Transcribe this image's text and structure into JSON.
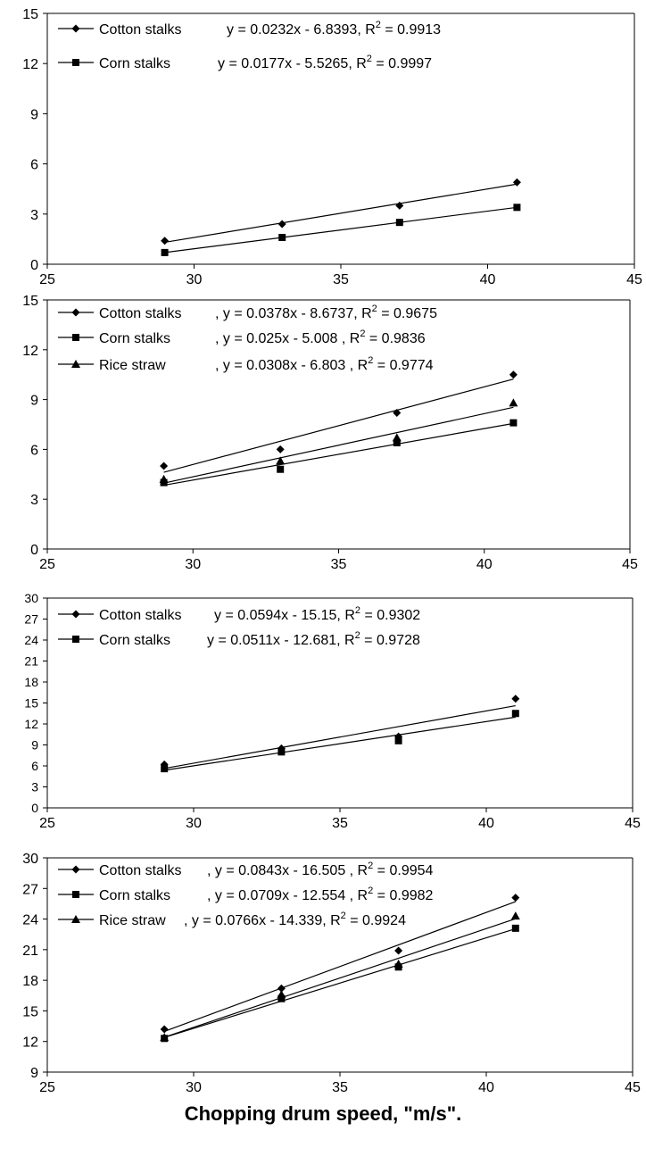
{
  "figure": {
    "xlabel": "Chopping drum speed, \"m/s\"."
  },
  "chart_data": [
    {
      "type": "scatter",
      "xlim": [
        25,
        45
      ],
      "ylim": [
        0,
        15
      ],
      "xticks": [
        25,
        30,
        35,
        40,
        45
      ],
      "yticks": [
        0,
        3,
        6,
        9,
        12,
        15
      ],
      "grid": false,
      "legend": "top-left",
      "series": [
        {
          "name": "Cotton stalks",
          "marker": "diamond",
          "x": [
            29,
            33,
            37,
            41
          ],
          "y": [
            1.4,
            2.4,
            3.5,
            4.9
          ],
          "fit": {
            "slope": 0.0232,
            "intercept": -6.8393
          },
          "eq_text": "y = 0.0232x - 6.8393,  R",
          "r2_text": " = 0.9913"
        },
        {
          "name": "Corn stalks",
          "marker": "square",
          "x": [
            29,
            33,
            37,
            41
          ],
          "y": [
            0.7,
            1.6,
            2.5,
            3.4
          ],
          "fit": {
            "slope": 0.0177,
            "intercept": -5.5265
          },
          "eq_text": "y = 0.0177x - 5.5265,  R",
          "r2_text": " = 0.9997"
        }
      ]
    },
    {
      "type": "scatter",
      "xlim": [
        25,
        45
      ],
      "ylim": [
        0,
        15
      ],
      "xticks": [
        25,
        30,
        35,
        40,
        45
      ],
      "yticks": [
        0,
        3,
        6,
        9,
        12,
        15
      ],
      "grid": false,
      "legend": "top-left",
      "series": [
        {
          "name": "Cotton stalks",
          "marker": "diamond",
          "x": [
            29,
            33,
            37,
            41
          ],
          "y": [
            5.0,
            6.0,
            8.2,
            10.5
          ],
          "fit": {
            "slope": 0.0378,
            "intercept": -8.6737
          },
          "eq_text": ", y = 0.0378x - 8.6737,  R",
          "r2_text": " = 0.9675"
        },
        {
          "name": "Corn stalks",
          "marker": "square",
          "x": [
            29,
            33,
            37,
            41
          ],
          "y": [
            4.0,
            4.8,
            6.4,
            7.6
          ],
          "fit": {
            "slope": 0.025,
            "intercept": -5.008
          },
          "eq_text": ", y = 0.025x - 5.008 ,  R",
          "r2_text": " = 0.9836"
        },
        {
          "name": "Rice straw",
          "marker": "triangle",
          "x": [
            29,
            33,
            37,
            41
          ],
          "y": [
            4.2,
            5.3,
            6.7,
            8.8
          ],
          "fit": {
            "slope": 0.0308,
            "intercept": -6.803
          },
          "eq_text": ", y = 0.0308x - 6.803 ,  R",
          "r2_text": " = 0.9774"
        }
      ]
    },
    {
      "type": "scatter",
      "xlim": [
        25,
        45
      ],
      "ylim": [
        0,
        30
      ],
      "xticks": [
        25,
        30,
        35,
        40,
        45
      ],
      "yticks": [
        0,
        3,
        6,
        9,
        12,
        15,
        18,
        21,
        24,
        27,
        30
      ],
      "grid": false,
      "legend": "top-left",
      "series": [
        {
          "name": "Cotton stalks",
          "marker": "diamond",
          "x": [
            29,
            33,
            37,
            41
          ],
          "y": [
            6.2,
            8.5,
            10.2,
            15.6
          ],
          "fit": {
            "slope": 0.0594,
            "intercept": -15.15
          },
          "eq_text": "y = 0.0594x - 15.15,   R",
          "r2_text": " = 0.9302"
        },
        {
          "name": "Corn stalks",
          "marker": "square",
          "x": [
            29,
            33,
            37,
            41
          ],
          "y": [
            5.6,
            8.0,
            9.6,
            13.5
          ],
          "fit": {
            "slope": 0.0511,
            "intercept": -12.681
          },
          "eq_text": "y = 0.0511x - 12.681,   R",
          "r2_text": " = 0.9728"
        }
      ]
    },
    {
      "type": "scatter",
      "xlim": [
        25,
        45
      ],
      "ylim": [
        9,
        30
      ],
      "xticks": [
        25,
        30,
        35,
        40,
        45
      ],
      "yticks": [
        9,
        12,
        15,
        18,
        21,
        24,
        27,
        30
      ],
      "grid": false,
      "legend": "top-left",
      "series": [
        {
          "name": "Cotton stalks",
          "marker": "diamond",
          "x": [
            29,
            33,
            37,
            41
          ],
          "y": [
            13.2,
            17.2,
            20.9,
            26.1
          ],
          "fit": {
            "slope": 0.0843,
            "intercept": -16.505
          },
          "eq_text": ", y = 0.0843x - 16.505 , R",
          "r2_text": " = 0.9954"
        },
        {
          "name": "Corn stalks",
          "marker": "square",
          "x": [
            29,
            33,
            37,
            41
          ],
          "y": [
            12.3,
            16.2,
            19.3,
            23.1
          ],
          "fit": {
            "slope": 0.0709,
            "intercept": -12.554
          },
          "eq_text": ", y = 0.0709x - 12.554 ,  R",
          "r2_text": " = 0.9982"
        },
        {
          "name": "Rice straw",
          "marker": "triangle",
          "x": [
            29,
            33,
            37,
            41
          ],
          "y": [
            12.4,
            16.6,
            19.6,
            24.3
          ],
          "fit": {
            "slope": 0.0766,
            "intercept": -14.339
          },
          "eq_text": ", y = 0.0766x - 14.339, R",
          "r2_text": " = 0.9924"
        }
      ]
    }
  ]
}
